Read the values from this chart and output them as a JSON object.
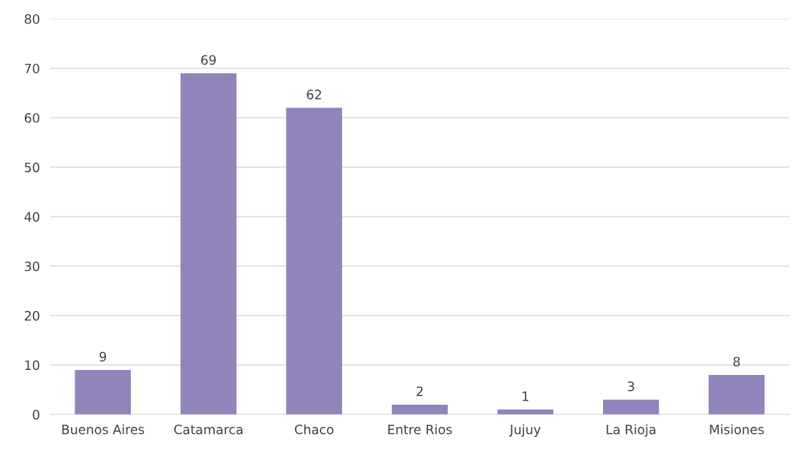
{
  "chart_data": {
    "type": "bar",
    "categories": [
      "Buenos Aires",
      "Catamarca",
      "Chaco",
      "Entre Rios",
      "Jujuy",
      "La Rioja",
      "Misiones"
    ],
    "values": [
      9,
      69,
      62,
      2,
      1,
      3,
      8
    ],
    "color": "#9184bd",
    "ylim": [
      0,
      80
    ],
    "yticks": [
      0,
      10,
      20,
      30,
      40,
      50,
      60,
      70,
      80
    ],
    "grid": "y",
    "data_labels": true,
    "legend": false
  }
}
